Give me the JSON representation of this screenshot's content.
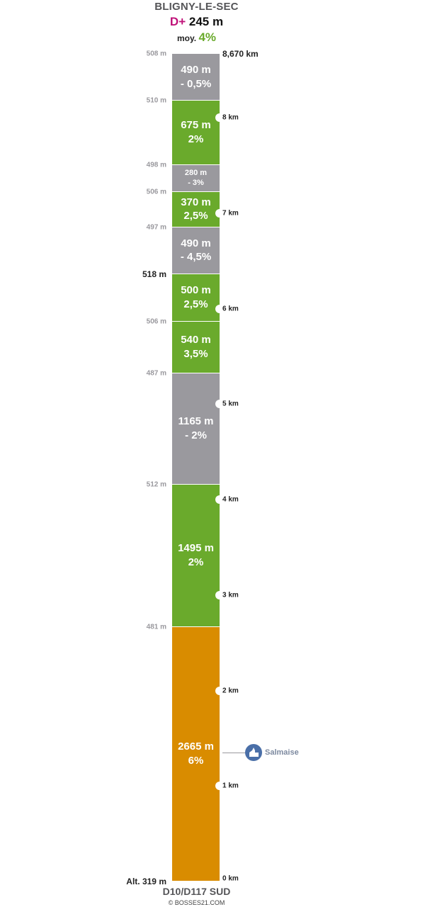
{
  "header": {
    "title": "BLIGNY-LE-SEC",
    "dplus_label": "D+",
    "dplus_value": "245  m",
    "moy_label": "moy.",
    "moy_value": "4%"
  },
  "distance_total": "8,670 km",
  "segments": [
    {
      "length": "490 m",
      "grade": "- 0,5%",
      "color": "grey",
      "font_size": 15
    },
    {
      "length": "675 m",
      "grade": "2%",
      "color": "green",
      "font_size": 15
    },
    {
      "length": "280 m",
      "grade": "- 3%",
      "color": "grey",
      "font_size": 11
    },
    {
      "length": "370 m",
      "grade": "2,5%",
      "color": "green",
      "font_size": 15
    },
    {
      "length": "490 m",
      "grade": "- 4,5%",
      "color": "grey",
      "font_size": 15
    },
    {
      "length": "500 m",
      "grade": "2,5%",
      "color": "green",
      "font_size": 15
    },
    {
      "length": "540 m",
      "grade": "3,5%",
      "color": "green",
      "font_size": 15
    },
    {
      "length": "1165 m",
      "grade": "- 2%",
      "color": "grey",
      "font_size": 15
    },
    {
      "length": "1495 m",
      "grade": "2%",
      "color": "green",
      "font_size": 15
    },
    {
      "length": "2665 m",
      "grade": "6%",
      "color": "orange",
      "font_size": 15
    }
  ],
  "altitudes": [
    {
      "label": "508 m",
      "strong": false
    },
    {
      "label": "510 m",
      "strong": false
    },
    {
      "label": "498 m",
      "strong": false
    },
    {
      "label": "506 m",
      "strong": false
    },
    {
      "label": "497 m",
      "strong": false
    },
    {
      "label": "518 m",
      "strong": true
    },
    {
      "label": "506 m",
      "strong": false
    },
    {
      "label": "487 m",
      "strong": false
    },
    {
      "label": "512 m",
      "strong": false
    },
    {
      "label": "481 m",
      "strong": false
    },
    {
      "label": "Alt. 319 m",
      "strong": true
    }
  ],
  "km_markers": [
    {
      "label": "8 km",
      "km": 8
    },
    {
      "label": "7 km",
      "km": 7
    },
    {
      "label": "6 km",
      "km": 6
    },
    {
      "label": "5 km",
      "km": 5
    },
    {
      "label": "4 km",
      "km": 4
    },
    {
      "label": "3 km",
      "km": 3
    },
    {
      "label": "2 km",
      "km": 2
    },
    {
      "label": "1 km",
      "km": 1
    },
    {
      "label": "0 km",
      "km": 0
    }
  ],
  "poi": {
    "label": "Salmaise",
    "icon": "church-icon",
    "km": 1.35
  },
  "footer": {
    "title": "D10/D117 SUD",
    "credit": "© BOSSES21.COM"
  },
  "colors": {
    "grey": "#9a999e",
    "green": "#6aaa2c",
    "orange": "#d98c00",
    "dplus": "#c0137a",
    "poi": "#4a6fa8"
  }
}
